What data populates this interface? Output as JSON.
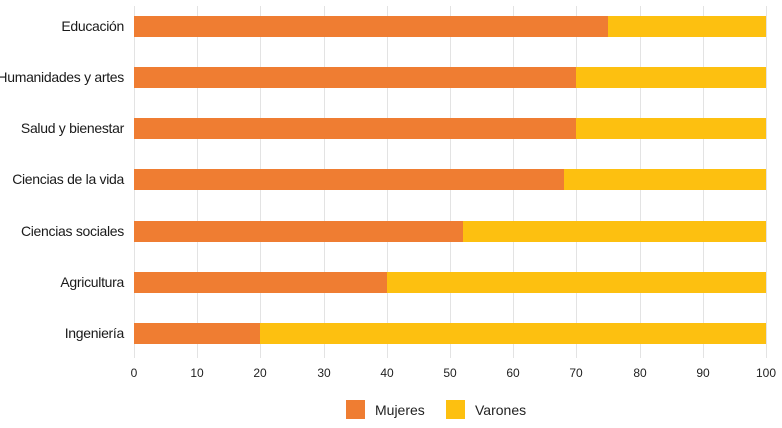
{
  "chart_data": {
    "type": "bar",
    "orientation": "horizontal",
    "stacked": true,
    "title": "",
    "xlabel": "",
    "ylabel": "",
    "xlim": [
      0,
      100
    ],
    "grid": true,
    "legend_position": "bottom",
    "categories": [
      "Educación",
      "Humanidades y artes",
      "Salud y bienestar",
      "Ciencias de la vida",
      "Ciencias sociales",
      "Agricultura",
      "Ingeniería"
    ],
    "series": [
      {
        "name": "Mujeres",
        "color": "#ef7d32",
        "values": [
          75,
          70,
          70,
          68,
          52,
          40,
          20
        ]
      },
      {
        "name": "Varones",
        "color": "#fdc010",
        "values": [
          25,
          30,
          30,
          32,
          48,
          60,
          80
        ]
      }
    ],
    "xticks": [
      "0",
      "10",
      "20",
      "30",
      "40",
      "50",
      "60",
      "70",
      "80",
      "90",
      "100"
    ]
  },
  "legend": {
    "items": [
      {
        "label": "Mujeres",
        "color": "#ef7d32"
      },
      {
        "label": "Varones",
        "color": "#fdc010"
      }
    ]
  }
}
